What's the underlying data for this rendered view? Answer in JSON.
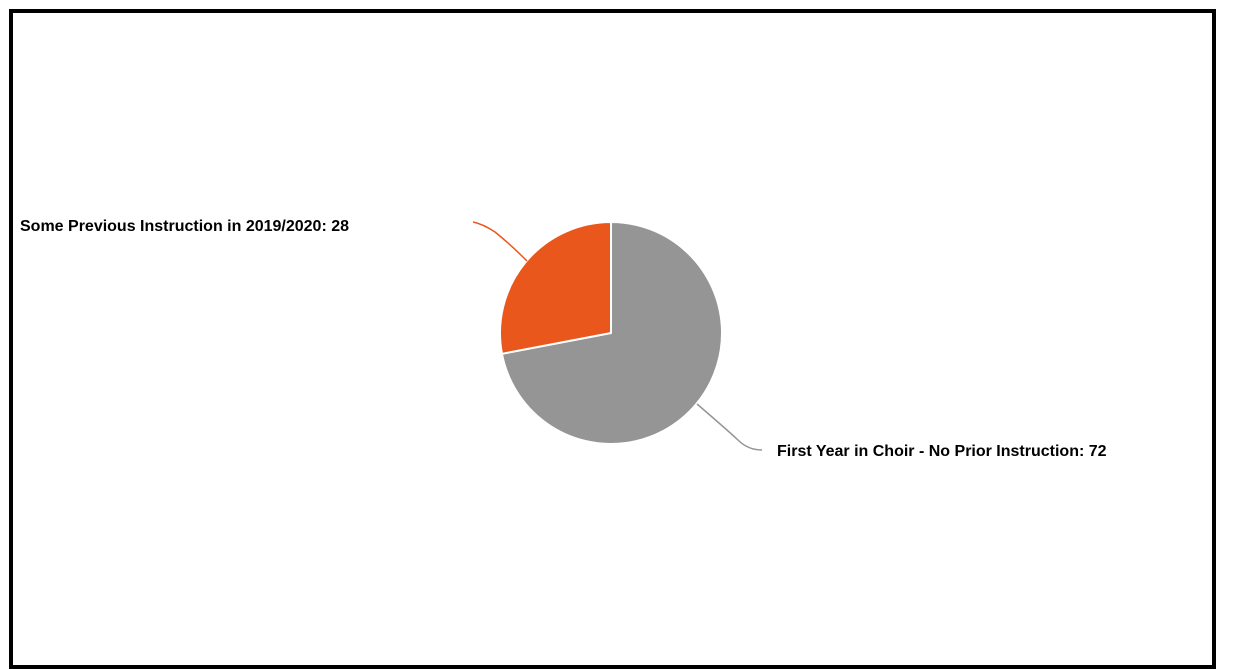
{
  "chart_data": {
    "type": "pie",
    "title": "",
    "slices": [
      {
        "label": "First Year in Choir - No Prior Instruction",
        "value": 72,
        "color": "#959595",
        "data_label": "First Year in Choir - No Prior Instruction: 72"
      },
      {
        "label": "Some Previous Instruction in 2019/2020",
        "value": 28,
        "color": "#E9571C",
        "data_label": "Some Previous Instruction in 2019/2020: 28"
      }
    ],
    "start_angle": "12 o'clock",
    "direction": "clockwise",
    "legend": "none"
  }
}
